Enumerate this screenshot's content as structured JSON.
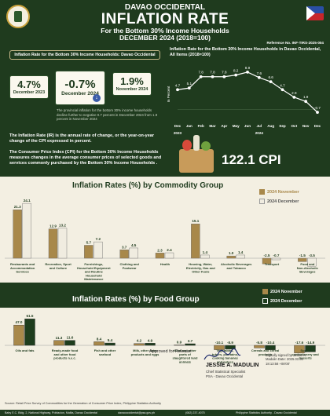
{
  "header": {
    "province": "DAVAO OCCIDENTAL",
    "title": "INFLATION RATE",
    "subtitle": "For the Bottom 30% Income Households",
    "period": "DECEMBER 2024 (2018=100)",
    "reference": "Reference No. INF-TIRS-2025-004"
  },
  "left": {
    "box_title": "Inflation Rate for the Bottom 30% Income Households: Davao Occidental",
    "kpi_dec2023": {
      "value": "4.7%",
      "label": "December 2023"
    },
    "kpi_dec2024": {
      "value": "-0.7%",
      "label": "December 2024"
    },
    "kpi_nov2024": {
      "value": "1.9%",
      "label": "November 2024"
    },
    "note": "The provincial inflation for the bottom 30% income households decline further to negative 0.7 percent in December 2024 from 1.9 percent in November 2024",
    "def_ir": "The Inflation Rate (IR) is the annual rate of change, or the year-on-year change of the CPI expressed in percent.",
    "def_cpi": "The Consumer Price Index (CPI) for the Bottom 30% Income Households measures changes in the average consumer prices of selected goods and services commonly purchased by the Bottom 30% Income Households .",
    "cpi_value": "122.1 CPI"
  },
  "chart_data": [
    {
      "type": "line",
      "title": "Inflation Rate for the Bottom 30% Income Households in Davao Occidental, All Items (2018=100)",
      "ylabel": "In Percent",
      "categories": [
        "Dec",
        "Jan",
        "Feb",
        "Mar",
        "Apr",
        "May",
        "Jun",
        "Jul",
        "Aug",
        "Sep",
        "Oct",
        "Nov",
        "Dec"
      ],
      "year_labels": [
        "2023",
        "2024"
      ],
      "values": [
        4.7,
        5.1,
        7.8,
        7.8,
        7.8,
        8.2,
        8.9,
        7.6,
        6.6,
        4.7,
        2.9,
        1.9,
        -0.7
      ],
      "labels": [
        "4.7",
        "5.1",
        "7.8",
        "7.8",
        "7.8",
        "8.2",
        "8.9",
        "7.6",
        "6.6",
        "4.7",
        "2.9",
        "1.9",
        "-0.7"
      ],
      "ylim": [
        -2,
        10
      ]
    },
    {
      "type": "bar",
      "title": "Inflation Rates (%) by Commodity Group",
      "series": [
        {
          "name": "2024 November",
          "color": "#a8884a",
          "values": [
            21.3,
            12.9,
            5.7,
            3.7,
            2.3,
            15.1,
            1.0,
            -2.5,
            -1.5
          ]
        },
        {
          "name": "2024 December",
          "color": "#f0ece0",
          "values": [
            24.1,
            13.2,
            7.2,
            4.5,
            2.4,
            1.4,
            1.4,
            -0.7,
            -3.5
          ]
        }
      ],
      "categories": [
        "Restaurants and Accommodation Services",
        "Recreation, Sport and Culture",
        "Furnishings, Household Equipment and Routine Household Maintenance",
        "Clothing and Footwear",
        "Health",
        "Housing, Water, Electricity, Gas and Other Fuels",
        "Alcoholic Beverages and Tobacco",
        "Transport",
        "Food and Non-Alcoholic Beverages"
      ],
      "labels_nov": [
        "21.3",
        "12.9",
        "5.7",
        "3.7",
        "2.3",
        "15.1",
        "1.0",
        "-2.5",
        "-1.5"
      ],
      "labels_dec": [
        "24.1",
        "13.2",
        "7.2",
        "4.5",
        "2.4",
        "1.4",
        "1.4",
        "-0.7",
        "-3.5"
      ]
    },
    {
      "type": "bar",
      "title": "Inflation Rates (%) by Food Group",
      "series": [
        {
          "name": "2024 November",
          "color": "#a8884a",
          "values": [
            47.0,
            11.3,
            8.4,
            4.2,
            0.9,
            -10.1,
            -5.8,
            -17.6
          ]
        },
        {
          "name": "2024 December",
          "color": "#1e3d1d",
          "values": [
            61.5,
            11.6,
            5.4,
            4.9,
            3.7,
            -8.9,
            -10.4,
            -14.9
          ]
        }
      ],
      "categories": [
        "Oils and fats",
        "Ready-made food and other food products n.e.c.",
        "Fish and other seafood",
        "Milk, other dairy products and eggs",
        "Meat and other parts of slaughtered land animals",
        "Vegetables, tubers, plantains, cooking bananas and pulses",
        "Cereals and cereal products",
        "Sugar, confectionery and desserts"
      ],
      "labels_nov": [
        "47.0",
        "11.3",
        "8.4",
        "4.2",
        "0.9",
        "-10.1",
        "-5.8",
        "-17.6"
      ],
      "labels_dec": [
        "61.5",
        "11.6",
        "5.4",
        "4.9",
        "3.7",
        "-8.9",
        "-10.4",
        "-14.9"
      ]
    }
  ],
  "footer": {
    "approved": "Approved for Release:",
    "signatory": "JESSIE A. MADULIN",
    "role1": "Chief Statistical Specialist",
    "role2": "PSA - Davao Occidental",
    "sig_note": "Digitally signed by Jessie A. Madulin Date: 2025.01.30 18:13:58 +08'00'",
    "source": "Source: Retail Price Survey of Commodities for the Generation of Consumer Price Index, Philippine Statistics Authority",
    "address": "Baby E.C. Bldg. 2, National Highway, Poblacion, Malita, Davao Occidental",
    "email": "davaooccidental@psa.gov.ph",
    "phone": "(082) 237-4075",
    "org": "Philippine Statistics Authority - Davao Occidental"
  }
}
